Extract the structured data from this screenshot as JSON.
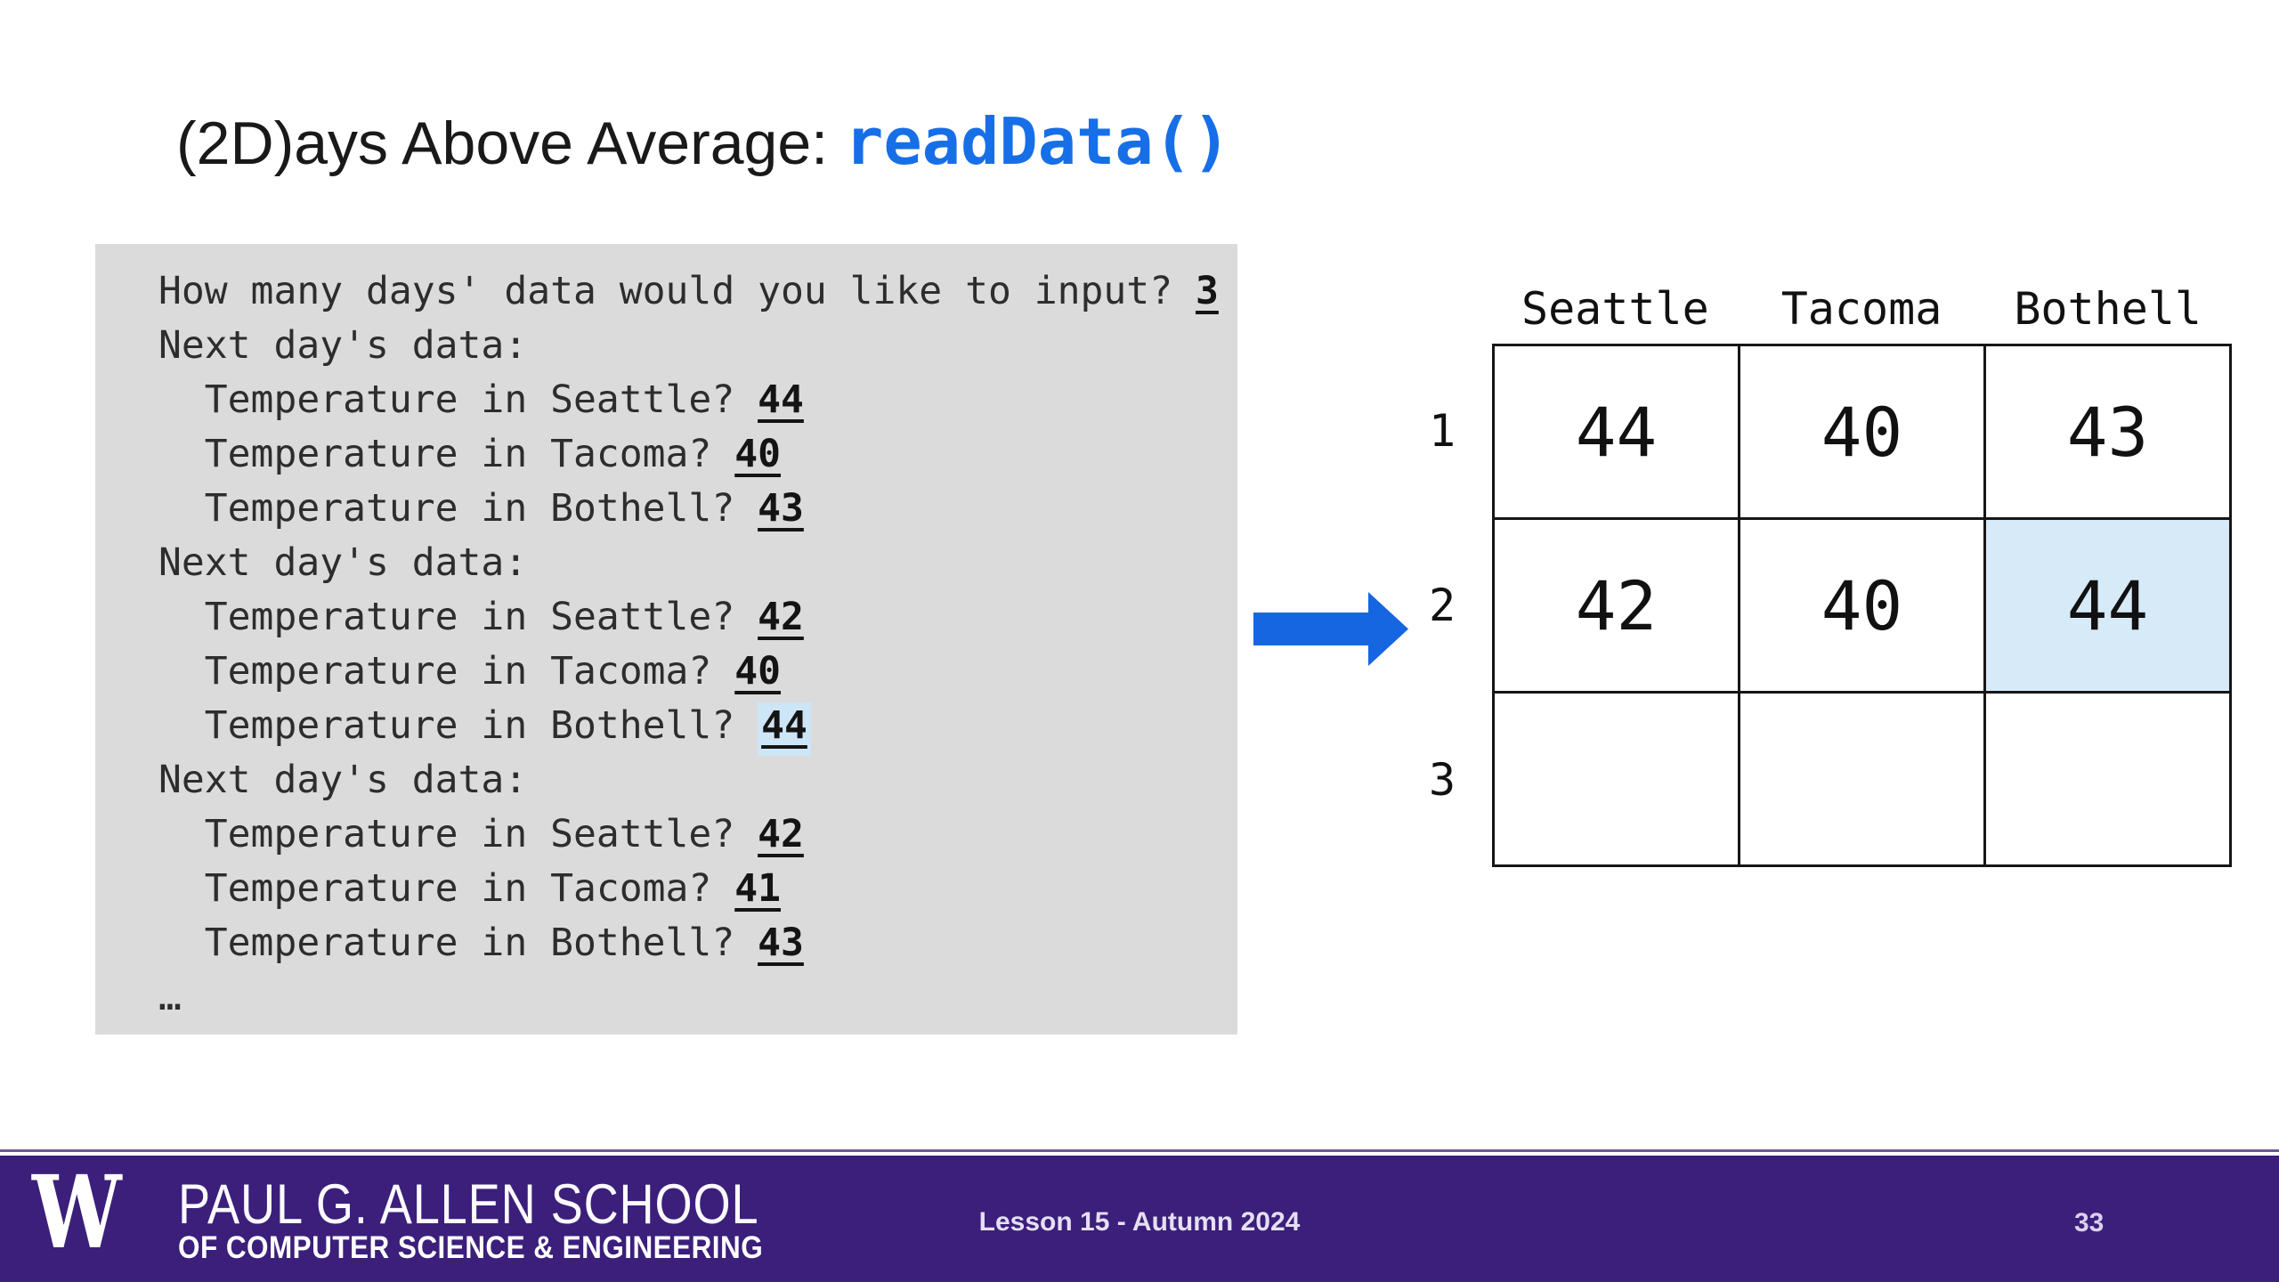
{
  "title": {
    "black": "(2D)ays Above Average: ",
    "code": "readData()"
  },
  "console": {
    "lines": [
      {
        "prefix": "How many days' data would you like to input? ",
        "value": "3",
        "highlight": false
      },
      {
        "prefix": "Next day's data:",
        "value": "",
        "highlight": false
      },
      {
        "prefix": "  Temperature in Seattle? ",
        "value": "44",
        "highlight": false
      },
      {
        "prefix": "  Temperature in Tacoma? ",
        "value": "40",
        "highlight": false
      },
      {
        "prefix": "  Temperature in Bothell? ",
        "value": "43",
        "highlight": false
      },
      {
        "prefix": "Next day's data:",
        "value": "",
        "highlight": false
      },
      {
        "prefix": "  Temperature in Seattle? ",
        "value": "42",
        "highlight": false
      },
      {
        "prefix": "  Temperature in Tacoma? ",
        "value": "40",
        "highlight": false
      },
      {
        "prefix": "  Temperature in Bothell? ",
        "value": "44",
        "highlight": true
      },
      {
        "prefix": "Next day's data:",
        "value": "",
        "highlight": false
      },
      {
        "prefix": "  Temperature in Seattle? ",
        "value": "42",
        "highlight": false
      },
      {
        "prefix": "  Temperature in Tacoma? ",
        "value": "41",
        "highlight": false
      },
      {
        "prefix": "  Temperature in Bothell? ",
        "value": "43",
        "highlight": false
      },
      {
        "prefix": "…",
        "value": "",
        "highlight": false
      }
    ]
  },
  "table": {
    "column_headers": [
      "Seattle",
      "Tacoma",
      "Bothell"
    ],
    "row_labels": [
      "1",
      "2",
      "3"
    ],
    "rows": [
      [
        "44",
        "40",
        "43"
      ],
      [
        "42",
        "40",
        "44"
      ],
      [
        "",
        "",
        ""
      ]
    ],
    "highlighted_cell": {
      "row": 1,
      "col": 2
    }
  },
  "footer": {
    "logo": "W",
    "school_line1": "PAUL G. ALLEN SCHOOL",
    "school_line2": "OF COMPUTER SCIENCE & ENGINEERING",
    "center_text": "Lesson 15 - Autumn 2024",
    "page_number": "33"
  },
  "colors": {
    "title_code_blue": "#176FE8",
    "arrow_blue": "#1566E0",
    "console_background": "#DBDBDB",
    "console_value_highlight": "#CDE6F7",
    "cell_highlight": "#D6EAF8",
    "footer_purple": "#3B1F7A",
    "footer_top_line": "#6C5797"
  }
}
